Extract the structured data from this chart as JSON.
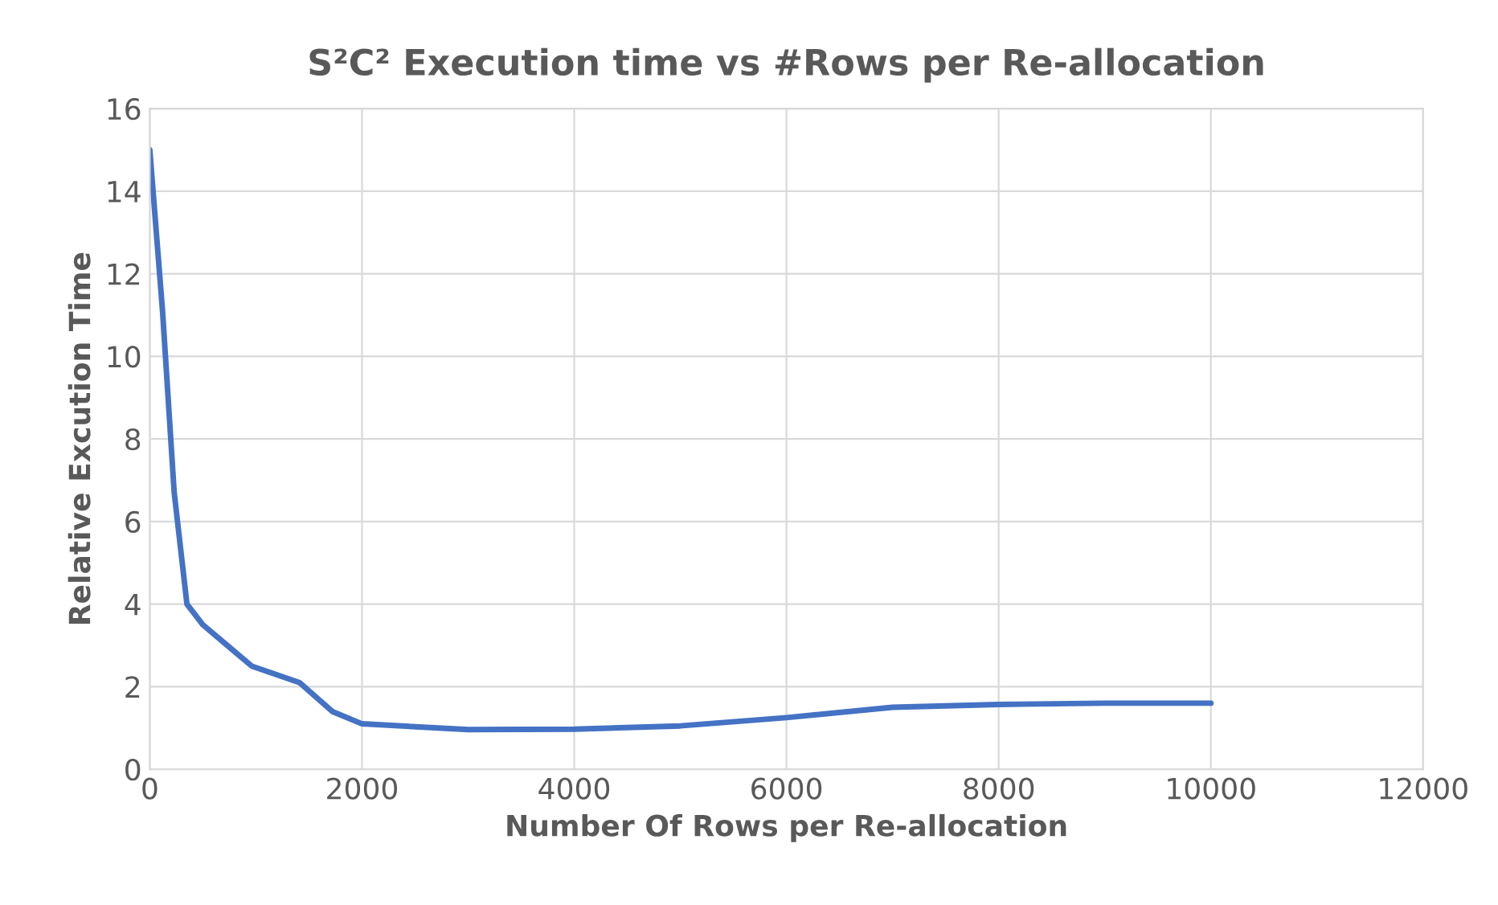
{
  "chart_data": {
    "type": "line",
    "title": "S²C² Execution time vs #Rows per Re-allocation",
    "xlabel": "Number Of Rows per Re-allocation",
    "ylabel": "Relative Excution Time",
    "x": [
      0,
      120,
      230,
      350,
      500,
      730,
      960,
      1410,
      1720,
      2000,
      3000,
      4000,
      5000,
      6000,
      7000,
      8000,
      9000,
      10000
    ],
    "series": [
      {
        "color": "#4472c4",
        "values": [
          15.0,
          11.1,
          6.7,
          4.0,
          3.5,
          3.0,
          2.5,
          2.1,
          1.4,
          1.1,
          0.96,
          0.97,
          1.05,
          1.25,
          1.5,
          1.57,
          1.6,
          1.6
        ]
      }
    ],
    "xlim": [
      0,
      12000
    ],
    "xticks": [
      0,
      2000,
      4000,
      6000,
      8000,
      10000,
      12000
    ],
    "ylim": [
      0,
      16
    ],
    "yticks": [
      0,
      2,
      4,
      6,
      8,
      10,
      12,
      14,
      16
    ],
    "grid": true,
    "marker": "none",
    "line_style": "solid"
  }
}
